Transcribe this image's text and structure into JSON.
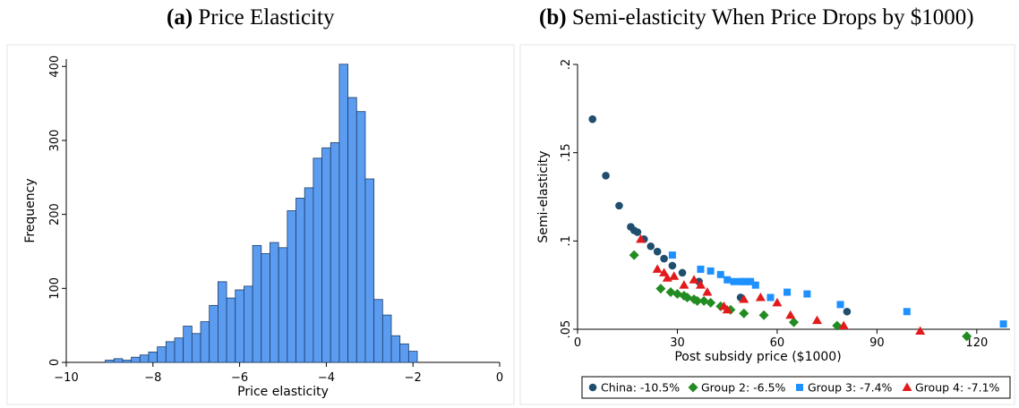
{
  "panel_a": {
    "letter": "(a)",
    "title": "Price Elasticity"
  },
  "panel_b": {
    "letter": "(b)",
    "title": "Semi-elasticity When Price Drops by $1000)"
  },
  "chart_data": [
    {
      "type": "bar",
      "subtype": "histogram",
      "title": "Price Elasticity",
      "xlabel": "Price elasticity",
      "ylabel": "Frequency",
      "xlim": [
        -10,
        0
      ],
      "ylim": [
        0,
        410
      ],
      "xticks": [
        -10,
        -8,
        -6,
        -4,
        -2,
        0
      ],
      "yticks": [
        0,
        100,
        200,
        300,
        400
      ],
      "bar_color": "#5b9cf0",
      "bins": {
        "start": -9.1,
        "width": 0.2,
        "values": [
          3,
          5,
          3,
          7,
          10,
          14,
          21,
          28,
          33,
          49,
          39,
          55,
          77,
          109,
          87,
          98,
          103,
          158,
          147,
          162,
          155,
          205,
          222,
          236,
          276,
          290,
          297,
          403,
          358,
          339,
          248,
          85,
          64,
          36,
          25,
          15
        ]
      }
    },
    {
      "type": "scatter",
      "title": "Semi-elasticity When Price Drops by $1000)",
      "xlabel": "Post subsidy price ($1000)",
      "ylabel": "Semi-elasticity",
      "xlim": [
        0,
        130
      ],
      "ylim": [
        0.05,
        0.2
      ],
      "xticks": [
        0,
        30,
        60,
        90,
        120
      ],
      "yticks": [
        0.05,
        0.1,
        0.15,
        0.2
      ],
      "ytick_labels": [
        ".05",
        ".1",
        ".15",
        ".2"
      ],
      "legend_position": "bottom",
      "series": [
        {
          "name": "China: -10.5%",
          "marker": "circle",
          "color": "#1f4e6e",
          "points": [
            [
              4.5,
              0.169
            ],
            [
              8.5,
              0.137
            ],
            [
              12.5,
              0.12
            ],
            [
              16,
              0.108
            ],
            [
              17,
              0.106
            ],
            [
              18,
              0.105
            ],
            [
              20,
              0.101
            ],
            [
              22,
              0.097
            ],
            [
              24,
              0.094
            ],
            [
              26,
              0.09
            ],
            [
              28.5,
              0.086
            ],
            [
              31.5,
              0.082
            ],
            [
              36.5,
              0.077
            ],
            [
              49,
              0.068
            ],
            [
              81,
              0.06
            ]
          ]
        },
        {
          "name": "Group 2: -6.5%",
          "marker": "diamond",
          "color": "#228b22",
          "points": [
            [
              17,
              0.092
            ],
            [
              25,
              0.073
            ],
            [
              28,
              0.071
            ],
            [
              30,
              0.07
            ],
            [
              32,
              0.069
            ],
            [
              33,
              0.068
            ],
            [
              35,
              0.067
            ],
            [
              36,
              0.066
            ],
            [
              38,
              0.066
            ],
            [
              40,
              0.065
            ],
            [
              43,
              0.063
            ],
            [
              46,
              0.061
            ],
            [
              50,
              0.059
            ],
            [
              56,
              0.058
            ],
            [
              65,
              0.054
            ],
            [
              78,
              0.052
            ],
            [
              117,
              0.046
            ]
          ]
        },
        {
          "name": "Group 3: -7.4%",
          "marker": "square",
          "color": "#1e90ff",
          "points": [
            [
              28.5,
              0.092
            ],
            [
              37,
              0.084
            ],
            [
              40,
              0.083
            ],
            [
              43,
              0.081
            ],
            [
              45,
              0.078
            ],
            [
              47,
              0.077
            ],
            [
              49,
              0.077
            ],
            [
              50,
              0.077
            ],
            [
              51,
              0.077
            ],
            [
              52,
              0.077
            ],
            [
              53.5,
              0.075
            ],
            [
              58,
              0.068
            ],
            [
              63,
              0.071
            ],
            [
              69,
              0.07
            ],
            [
              79,
              0.064
            ],
            [
              99,
              0.06
            ],
            [
              128,
              0.053
            ]
          ]
        },
        {
          "name": "Group 4: -7.1%",
          "marker": "triangle",
          "color": "#e31a1c",
          "points": [
            [
              19,
              0.101
            ],
            [
              24,
              0.084
            ],
            [
              26,
              0.082
            ],
            [
              27,
              0.079
            ],
            [
              29,
              0.08
            ],
            [
              32,
              0.075
            ],
            [
              35,
              0.078
            ],
            [
              37,
              0.075
            ],
            [
              39,
              0.071
            ],
            [
              44,
              0.063
            ],
            [
              45,
              0.061
            ],
            [
              50,
              0.067
            ],
            [
              55,
              0.068
            ],
            [
              60,
              0.065
            ],
            [
              64,
              0.058
            ],
            [
              72,
              0.055
            ],
            [
              80,
              0.052
            ],
            [
              103,
              0.049
            ]
          ]
        }
      ]
    }
  ]
}
